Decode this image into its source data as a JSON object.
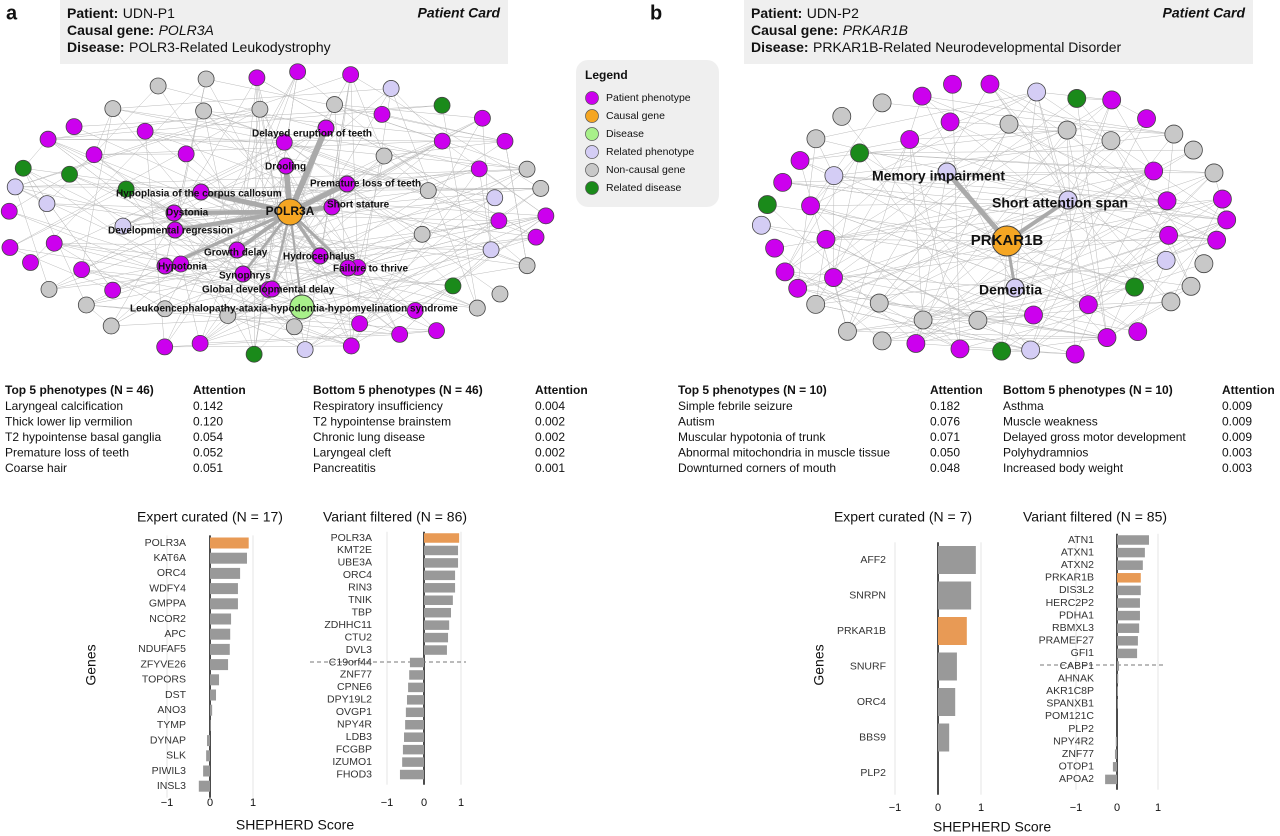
{
  "legend": {
    "title": "Legend",
    "items": [
      {
        "label": "Patient phenotype",
        "color": "#cc00ee"
      },
      {
        "label": "Causal gene",
        "color": "#f5a623"
      },
      {
        "label": "Disease",
        "color": "#a8f08a"
      },
      {
        "label": "Related phenotype",
        "color": "#d4cdf5"
      },
      {
        "label": "Non-causal gene",
        "color": "#c8c8c8"
      },
      {
        "label": "Related disease",
        "color": "#1a8a1a"
      }
    ]
  },
  "panels": [
    {
      "letter": "a",
      "card": {
        "patient_label": "Patient:",
        "patient": "UDN-P1",
        "gene_label": "Causal gene:",
        "gene": "POLR3A",
        "disease_label": "Disease:",
        "disease": "POLR3-Related Leukodystrophy",
        "tag": "Patient Card"
      },
      "network": {
        "nodes": [
          {
            "label": "POLR3A",
            "color": "#f5a623"
          },
          {
            "label": "Delayed eruption of teeth",
            "color": "#cc00ee"
          },
          {
            "label": "Drooling",
            "color": "#cc00ee"
          },
          {
            "label": "Premature loss of teeth",
            "color": "#cc00ee"
          },
          {
            "label": "Hypoplasia of the corpus callosum",
            "color": "#cc00ee"
          },
          {
            "label": "Short stature",
            "color": "#cc00ee"
          },
          {
            "label": "Dystonia",
            "color": "#cc00ee"
          },
          {
            "label": "Developmental regression",
            "color": "#cc00ee"
          },
          {
            "label": "Growth delay",
            "color": "#cc00ee"
          },
          {
            "label": "Hydrocephalus",
            "color": "#cc00ee"
          },
          {
            "label": "Hypotonia",
            "color": "#cc00ee"
          },
          {
            "label": "Failure to thrive",
            "color": "#cc00ee"
          },
          {
            "label": "Synophrys",
            "color": "#cc00ee"
          },
          {
            "label": "Global developmental delay",
            "color": "#cc00ee"
          },
          {
            "label": "Leukoencephalopathy-ataxia-hypodontia-hypomyelination syndrome",
            "color": "#a8f08a"
          }
        ]
      },
      "tables": [
        {
          "header": [
            "Top 5 phenotypes (N = 46)",
            "Attention"
          ],
          "rows": [
            [
              "Laryngeal calcification",
              "0.142"
            ],
            [
              "Thick lower lip vermilion",
              "0.120"
            ],
            [
              "T2 hypointense basal ganglia",
              "0.054"
            ],
            [
              "Premature loss of teeth",
              "0.052"
            ],
            [
              "Coarse hair",
              "0.051"
            ]
          ]
        },
        {
          "header": [
            "Bottom 5 phenotypes (N = 46)",
            "Attention"
          ],
          "rows": [
            [
              "Respiratory insufficiency",
              "0.004"
            ],
            [
              "T2 hypointense brainstem",
              "0.002"
            ],
            [
              "Chronic lung disease",
              "0.002"
            ],
            [
              "Laryngeal cleft",
              "0.002"
            ],
            [
              "Pancreatitis",
              "0.001"
            ]
          ]
        }
      ],
      "y_label": "Genes",
      "x_label": "SHEPHERD Score"
    },
    {
      "letter": "b",
      "card": {
        "patient_label": "Patient:",
        "patient": "UDN-P2",
        "gene_label": "Causal gene:",
        "gene": "PRKAR1B",
        "disease_label": "Disease:",
        "disease": "PRKAR1B-Related Neurodevelopmental Disorder",
        "tag": "Patient Card"
      },
      "network": {
        "nodes": [
          {
            "label": "PRKAR1B",
            "color": "#f5a623"
          },
          {
            "label": "Memory impairment",
            "color": "#d4cdf5"
          },
          {
            "label": "Short attention span",
            "color": "#d4cdf5"
          },
          {
            "label": "Dementia",
            "color": "#d4cdf5"
          }
        ]
      },
      "tables": [
        {
          "header": [
            "Top 5 phenotypes (N = 10)",
            "Attention"
          ],
          "rows": [
            [
              "Simple febrile seizure",
              "0.182"
            ],
            [
              "Autism",
              "0.076"
            ],
            [
              "Muscular hypotonia of trunk",
              "0.071"
            ],
            [
              "Abnormal mitochondria in muscle tissue",
              "0.050"
            ],
            [
              "Downturned corners of mouth",
              "0.048"
            ]
          ]
        },
        {
          "header": [
            "Bottom 5 phenotypes (N = 10)",
            "Attention"
          ],
          "rows": [
            [
              "Asthma",
              "0.009"
            ],
            [
              "Muscle weakness",
              "0.009"
            ],
            [
              "Delayed gross motor development",
              "0.009"
            ],
            [
              "Polyhydramnios",
              "0.003"
            ],
            [
              "Increased body weight",
              "0.003"
            ]
          ]
        }
      ],
      "y_label": "Genes",
      "x_label": "SHEPHERD Score"
    }
  ],
  "chart_data": [
    {
      "type": "bar",
      "orientation": "horizontal",
      "title": "Expert curated (N = 17)",
      "categories": [
        "POLR3A",
        "KAT6A",
        "ORC4",
        "WDFY4",
        "GMPPA",
        "NCOR2",
        "APC",
        "NDUFAF5",
        "ZFYVE26",
        "TOPORS",
        "DST",
        "ANO3",
        "TYMP",
        "DYNAP",
        "SLK",
        "PIWIL3",
        "INSL3"
      ],
      "values": [
        0.9,
        0.86,
        0.7,
        0.65,
        0.65,
        0.49,
        0.47,
        0.46,
        0.42,
        0.21,
        0.14,
        0.05,
        0.01,
        -0.07,
        -0.09,
        -0.16,
        -0.26
      ],
      "colors": [
        "#e89a55",
        "#999999",
        "#999999",
        "#999999",
        "#999999",
        "#999999",
        "#999999",
        "#999999",
        "#999999",
        "#999999",
        "#999999",
        "#999999",
        "#999999",
        "#999999",
        "#999999",
        "#999999",
        "#999999"
      ],
      "xlim": [
        -1.1,
        1.4
      ],
      "xticks": [
        {
          "value": -1,
          "label": "−1"
        },
        0,
        1
      ]
    },
    {
      "type": "bar",
      "orientation": "horizontal",
      "title": "Variant filtered (N = 86)",
      "categories": [
        "POLR3A",
        "KMT2E",
        "UBE3A",
        "ORC4",
        "RIN3",
        "TNIK",
        "TBP",
        "ZDHHC11",
        "CTU2",
        "DVL3",
        "C19orf44",
        "ZNF77",
        "CPNE6",
        "DPY19L2",
        "OVGP1",
        "NPY4R",
        "LDB3",
        "FCGBP",
        "IZUMO1",
        "FHOD3"
      ],
      "values": [
        0.95,
        0.92,
        0.92,
        0.84,
        0.84,
        0.78,
        0.73,
        0.68,
        0.65,
        0.62,
        -0.38,
        -0.4,
        -0.43,
        -0.46,
        -0.49,
        -0.51,
        -0.54,
        -0.57,
        -0.59,
        -0.65
      ],
      "colors": [
        "#e89a55",
        "#999999",
        "#999999",
        "#999999",
        "#999999",
        "#999999",
        "#999999",
        "#999999",
        "#999999",
        "#999999",
        "#999999",
        "#999999",
        "#999999",
        "#999999",
        "#999999",
        "#999999",
        "#999999",
        "#999999",
        "#999999",
        "#999999"
      ],
      "xlim": [
        -1.1,
        1.2
      ],
      "xticks": [
        {
          "value": -1,
          "label": "−1"
        },
        0,
        1
      ]
    },
    {
      "type": "bar",
      "orientation": "horizontal",
      "title": "Expert curated (N = 7)",
      "categories": [
        "AFF2",
        "SNRPN",
        "PRKAR1B",
        "SNURF",
        "ORC4",
        "BBS9",
        "PLP2"
      ],
      "values": [
        0.88,
        0.77,
        0.67,
        0.44,
        0.4,
        0.26,
        0
      ],
      "colors": [
        "#999999",
        "#999999",
        "#e89a55",
        "#999999",
        "#999999",
        "#999999",
        "#999999"
      ],
      "xlim": [
        -1.1,
        1.4
      ],
      "xticks": [
        {
          "value": -1,
          "label": "−1"
        },
        0,
        1
      ]
    },
    {
      "type": "bar",
      "orientation": "horizontal",
      "title": "Variant filtered (N = 85)",
      "categories": [
        "ATN1",
        "ATXN1",
        "ATXN2",
        "PRKAR1B",
        "DIS3L2",
        "HERC2P2",
        "PDHA1",
        "RBMXL3",
        "PRAMEF27",
        "GFI1",
        "CABP1",
        "AHNAK",
        "AKR1C8P",
        "SPANXB1",
        "POM121C",
        "PLP2",
        "NPY4R2",
        "ZNF77",
        "OTOP1",
        "APOA2"
      ],
      "values": [
        0.78,
        0.68,
        0.63,
        0.58,
        0.58,
        0.56,
        0.56,
        0.54,
        0.51,
        0.49,
        0.05,
        0.03,
        0.02,
        0.01,
        0,
        0,
        -0.03,
        -0.05,
        -0.1,
        -0.29
      ],
      "colors": [
        "#999999",
        "#999999",
        "#999999",
        "#e89a55",
        "#999999",
        "#999999",
        "#999999",
        "#999999",
        "#999999",
        "#999999",
        "#999999",
        "#999999",
        "#999999",
        "#999999",
        "#999999",
        "#999999",
        "#999999",
        "#999999",
        "#999999",
        "#999999"
      ],
      "xlim": [
        -1.1,
        1.2
      ],
      "xticks": [
        {
          "value": -1,
          "label": "−1"
        },
        0,
        1
      ]
    }
  ]
}
